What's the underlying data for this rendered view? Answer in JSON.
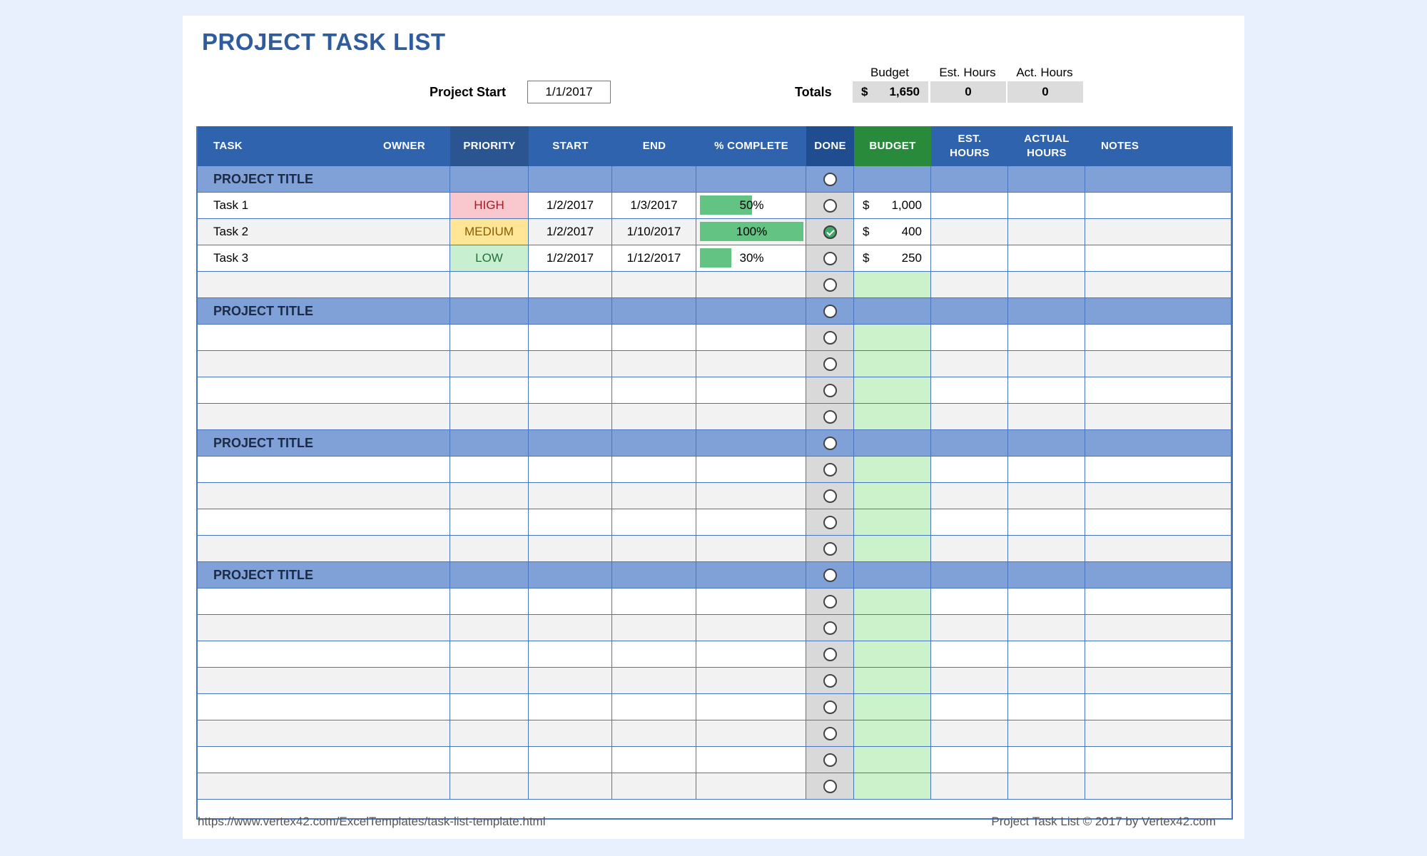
{
  "title": "PROJECT TASK LIST",
  "project_start": {
    "label": "Project Start",
    "value": "1/1/2017"
  },
  "summary": {
    "label": "Totals",
    "budget_head": "Budget",
    "est_head": "Est. Hours",
    "act_head": "Act. Hours",
    "budget_currency": "$",
    "budget_value": "1,650",
    "est_value": "0",
    "act_value": "0"
  },
  "headers": {
    "task": "TASK",
    "owner": "OWNER",
    "priority": "PRIORITY",
    "start": "START",
    "end": "END",
    "complete": "% COMPLETE",
    "done": "DONE",
    "budget": "BUDGET",
    "est_hours": "EST. HOURS",
    "actual_hours": "ACTUAL HOURS",
    "notes": "NOTES"
  },
  "project_title": "PROJECT TITLE",
  "tasks": [
    {
      "name": "Task 1",
      "priority": "HIGH",
      "priority_level": "high",
      "start": "1/2/2017",
      "end": "1/3/2017",
      "percent": 50,
      "percent_label": "50%",
      "done": false,
      "currency": "$",
      "budget": "1,000"
    },
    {
      "name": "Task 2",
      "priority": "MEDIUM",
      "priority_level": "medium",
      "start": "1/2/2017",
      "end": "1/10/2017",
      "percent": 100,
      "percent_label": "100%",
      "done": true,
      "currency": "$",
      "budget": "400"
    },
    {
      "name": "Task 3",
      "priority": "LOW",
      "priority_level": "low",
      "start": "1/2/2017",
      "end": "1/12/2017",
      "percent": 30,
      "percent_label": "30%",
      "done": false,
      "currency": "$",
      "budget": "250"
    }
  ],
  "colors": {
    "header": "#2f63ae",
    "priority_header": "#2a5590",
    "done_header": "#1f4d8f",
    "budget_header": "#2a8a3b",
    "project_row": "#7fa1d8",
    "progress": "#63c383",
    "budget_fill": "#ccf2cc"
  },
  "footer": {
    "url": "https://www.vertex42.com/ExcelTemplates/task-list-template.html",
    "copyright": "Project Task List © 2017 by Vertex42.com"
  }
}
